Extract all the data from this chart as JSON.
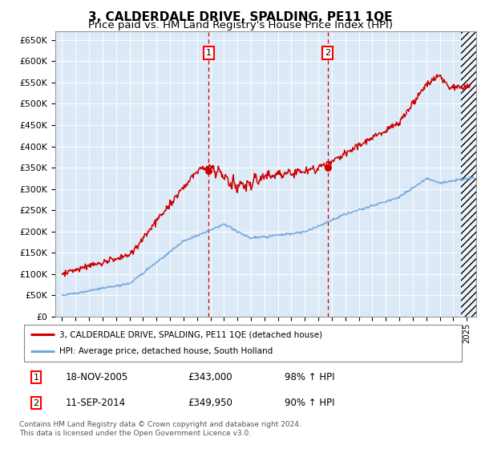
{
  "title": "3, CALDERDALE DRIVE, SPALDING, PE11 1QE",
  "subtitle": "Price paid vs. HM Land Registry's House Price Index (HPI)",
  "ylim": [
    0,
    670000
  ],
  "yticks": [
    0,
    50000,
    100000,
    150000,
    200000,
    250000,
    300000,
    350000,
    400000,
    450000,
    500000,
    550000,
    600000,
    650000
  ],
  "xlim_start": 1994.5,
  "xlim_end": 2025.7,
  "hpi_color": "#6fa8dc",
  "price_color": "#cc0000",
  "background_color": "#dce9f7",
  "sale1_date": 2005.88,
  "sale1_price": 343000,
  "sale2_date": 2014.69,
  "sale2_price": 349950,
  "legend_line1": "3, CALDERDALE DRIVE, SPALDING, PE11 1QE (detached house)",
  "legend_line2": "HPI: Average price, detached house, South Holland",
  "table_row1": [
    "1",
    "18-NOV-2005",
    "£343,000",
    "98% ↑ HPI"
  ],
  "table_row2": [
    "2",
    "11-SEP-2014",
    "£349,950",
    "90% ↑ HPI"
  ],
  "footnote": "Contains HM Land Registry data © Crown copyright and database right 2024.\nThis data is licensed under the Open Government Licence v3.0.",
  "title_fontsize": 11,
  "subtitle_fontsize": 9.5,
  "grid_color": "white",
  "hatch_start": 2024.58,
  "hatch_end": 2025.7
}
